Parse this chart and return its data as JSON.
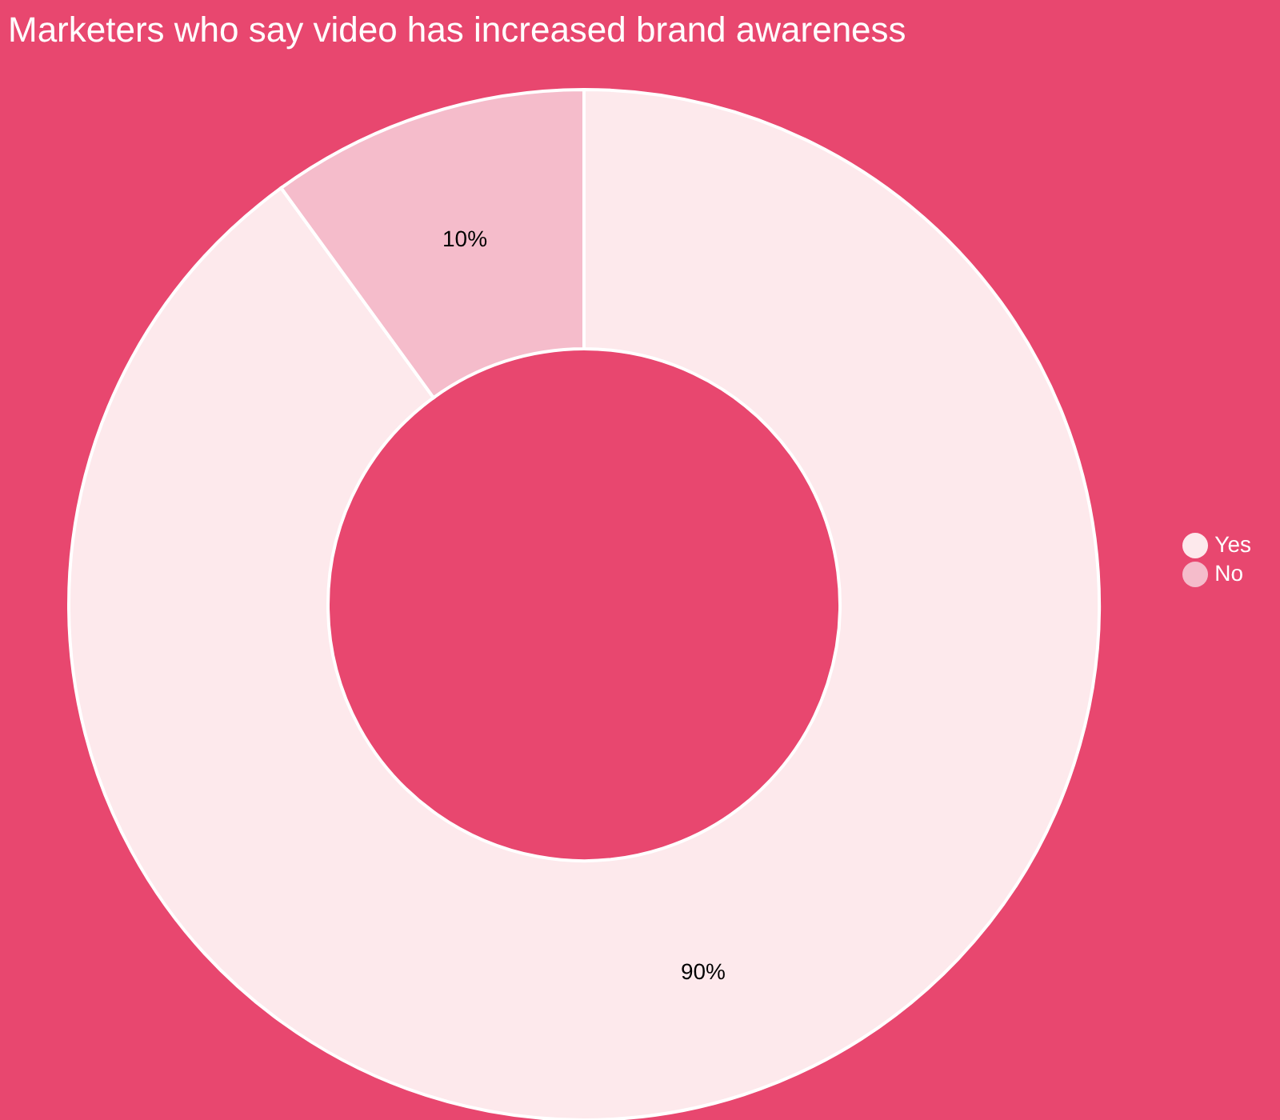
{
  "chart_data": {
    "type": "donut",
    "title": "Marketers who say video has increased brand awareness",
    "categories": [
      "Yes",
      "No"
    ],
    "values": [
      90,
      10
    ],
    "colors": [
      "#fde9ec",
      "#f5bccb"
    ],
    "value_labels": [
      "90%",
      "10%"
    ],
    "legend": "right"
  }
}
